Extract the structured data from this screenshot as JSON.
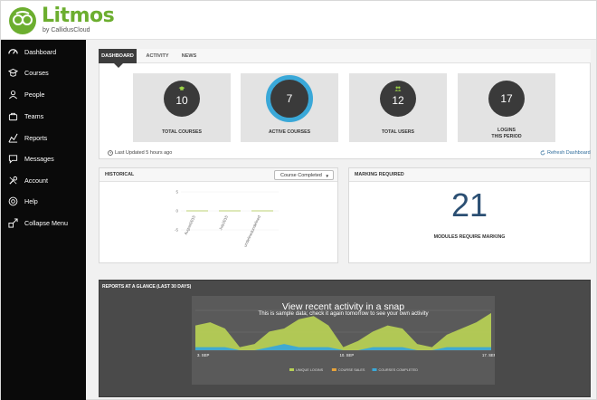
{
  "brand": {
    "name": "Litmos",
    "tagline": "by CallidusCloud",
    "color": "#6cae2f"
  },
  "sidebar": {
    "items": [
      {
        "label": "Dashboard",
        "icon": "dashboard-icon"
      },
      {
        "label": "Courses",
        "icon": "courses-icon"
      },
      {
        "label": "People",
        "icon": "people-icon"
      },
      {
        "label": "Teams",
        "icon": "teams-icon"
      },
      {
        "label": "Reports",
        "icon": "reports-icon"
      },
      {
        "label": "Messages",
        "icon": "messages-icon"
      },
      {
        "label": "Account",
        "icon": "account-icon"
      },
      {
        "label": "Help",
        "icon": "help-icon"
      },
      {
        "label": "Collapse Menu",
        "icon": "collapse-menu-icon"
      }
    ]
  },
  "tabs": [
    {
      "label": "DASHBOARD",
      "active": true
    },
    {
      "label": "ACTIVITY",
      "active": false
    },
    {
      "label": "NEWS",
      "active": false
    }
  ],
  "stats": [
    {
      "value": "10",
      "label_lines": [
        "TOTAL COURSES"
      ],
      "icon": "graduation-cap-icon"
    },
    {
      "value": "7",
      "label_lines": [
        "ACTIVE COURSES"
      ],
      "icon": ""
    },
    {
      "value": "12",
      "label_lines": [
        "TOTAL USERS"
      ],
      "icon": "users-icon"
    },
    {
      "value": "17",
      "label_lines": [
        "LOGINS",
        "THIS PERIOD"
      ],
      "icon": ""
    }
  ],
  "last_updated": "Last Updated 5 hours ago",
  "refresh_label": "Refresh Dashboard",
  "historical": {
    "title": "HISTORICAL",
    "select_value": "Course Completed",
    "chart_data": {
      "type": "bar",
      "categories": [
        "August2015",
        "July2015",
        "undefinedundefined"
      ],
      "values": [
        0,
        0,
        0
      ],
      "yticks": [
        "5",
        "0",
        "-5"
      ],
      "ylim": [
        -5,
        5
      ]
    }
  },
  "marking": {
    "title": "MARKING REQUIRED",
    "value": "21",
    "label": "MODULES REQUIRE MARKING"
  },
  "glance": {
    "title": "REPORTS AT A GLANCE (LAST 30 DAYS)",
    "overlay_title": "View recent activity in a snap",
    "overlay_sub": "This is sample data; check it again tomorrow to see your own activity",
    "chart_data": {
      "type": "area",
      "x_labels": [
        "3. SEP",
        "10. SEP",
        "17. SEP"
      ],
      "x": [
        0,
        1,
        2,
        3,
        4,
        5,
        6,
        7,
        8,
        9,
        10,
        11,
        12,
        13,
        14,
        15,
        16,
        17,
        18,
        19,
        20
      ],
      "series": [
        {
          "name": "UNIQUE LOGINS",
          "color": "#b6cf55",
          "values": [
            8,
            9,
            7,
            1,
            2,
            6,
            7,
            10,
            11,
            8,
            1,
            3,
            6,
            8,
            7,
            2,
            1,
            5,
            7,
            9,
            12
          ]
        },
        {
          "name": "COURSE SALES",
          "color": "#e8a33a",
          "values": [
            0,
            0,
            0,
            0,
            0,
            0,
            0,
            0,
            0,
            0,
            0,
            0,
            0,
            0,
            0,
            0,
            0,
            0,
            0,
            0,
            0
          ]
        },
        {
          "name": "COURSES COMPLETED",
          "color": "#3aa8d8",
          "values": [
            1,
            1,
            1,
            0,
            0,
            1,
            2,
            1,
            1,
            1,
            0,
            0,
            1,
            1,
            1,
            0,
            0,
            1,
            1,
            1,
            1
          ]
        }
      ],
      "ylim": [
        0,
        14
      ]
    }
  }
}
